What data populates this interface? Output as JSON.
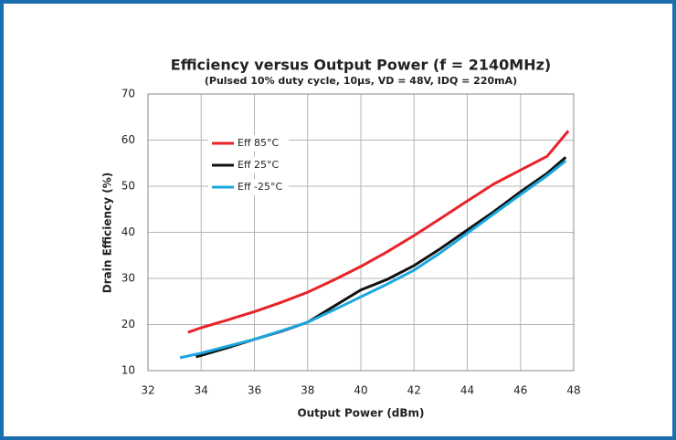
{
  "chart_data": {
    "type": "line",
    "title": "Efficiency versus Output Power (f = 2140MHz)",
    "subtitle": "(Pulsed 10% duty cycle, 10µs, VD = 48V, IDQ = 220mA)",
    "x_label": "Output Power (dBm)",
    "y_label": "Drain Efficiency (%)",
    "xlim": [
      32,
      48
    ],
    "xticks": [
      32,
      34,
      36,
      38,
      40,
      42,
      44,
      46,
      48
    ],
    "ylim": [
      10,
      70
    ],
    "yticks": [
      10,
      20,
      30,
      40,
      50,
      60,
      70
    ],
    "grid": true,
    "legend": "upper left",
    "series": [
      {
        "name": "Eff 85°C",
        "color": "#e8232a",
        "x": [
          33.5,
          34,
          35,
          36,
          37,
          38,
          39,
          40,
          41,
          42,
          43,
          44,
          45,
          46,
          47,
          47.8
        ],
        "values": [
          18.3,
          19.3,
          21,
          22.8,
          24.8,
          27,
          29.7,
          32.6,
          35.8,
          39.3,
          43,
          46.8,
          50.5,
          53.5,
          56.5,
          62
        ]
      },
      {
        "name": "Eff 25°C",
        "color": "#111111",
        "x": [
          33.8,
          34,
          35,
          36,
          37,
          38,
          39,
          40,
          41,
          42,
          43,
          44,
          45,
          46,
          47,
          47.7
        ],
        "values": [
          13,
          13.3,
          15,
          16.8,
          18.5,
          20.5,
          24,
          27.5,
          29.8,
          32.8,
          36.5,
          40.5,
          44.5,
          48.8,
          52.8,
          56.3
        ]
      },
      {
        "name": "Eff -25°C",
        "color": "#1ba7e0",
        "x": [
          33.2,
          34,
          35,
          36,
          37,
          38,
          39,
          40,
          41,
          42,
          43,
          44,
          45,
          46,
          47,
          47.7
        ],
        "values": [
          12.8,
          13.8,
          15.3,
          16.8,
          18.6,
          20.5,
          23.2,
          26,
          28.8,
          31.8,
          35.6,
          39.8,
          44,
          48.2,
          52.3,
          55.5
        ]
      }
    ]
  }
}
